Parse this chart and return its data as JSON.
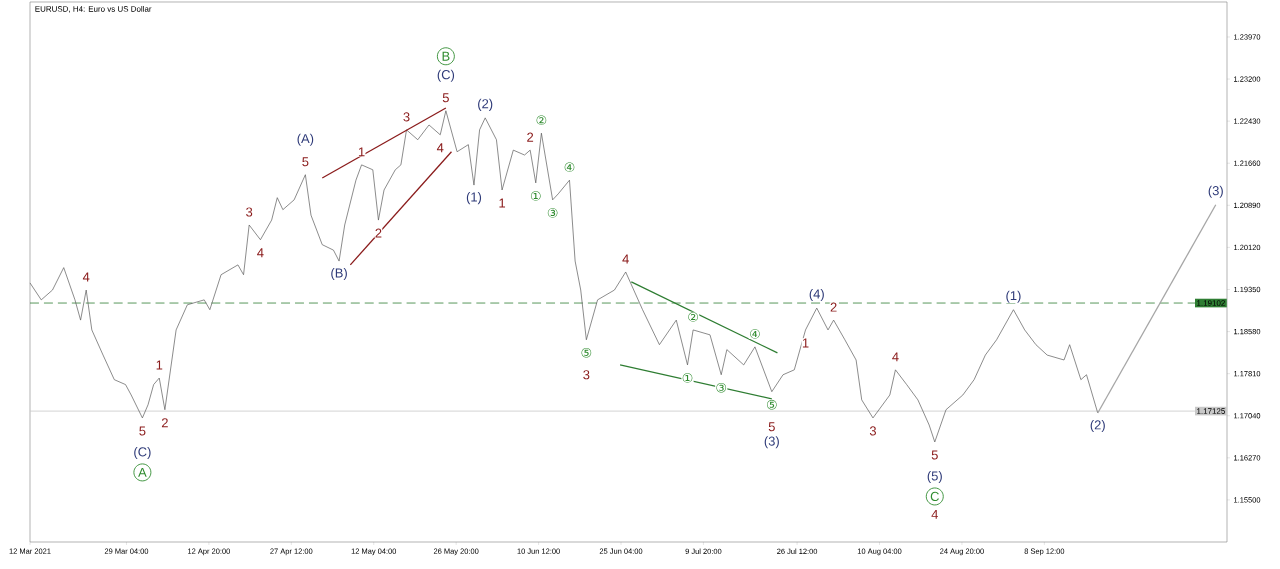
{
  "chart_data": {
    "type": "line",
    "title": "EURUSD, H4:  Euro vs US Dollar",
    "xlim": [
      "2021-03-12",
      "2021-10-11"
    ],
    "ylim": [
      1.1473,
      1.2461
    ],
    "xticks": [
      {
        "value": "2021-03-12T00:00",
        "label": "12 Mar 2021"
      },
      {
        "value": "2021-03-29T04:00",
        "label": "29 Mar 04:00"
      },
      {
        "value": "2021-04-12T20:00",
        "label": "12 Apr 20:00"
      },
      {
        "value": "2021-04-27T12:00",
        "label": "27 Apr 12:00"
      },
      {
        "value": "2021-05-12T04:00",
        "label": "12 May 04:00"
      },
      {
        "value": "2021-05-26T20:00",
        "label": "26 May 20:00"
      },
      {
        "value": "2021-06-10T12:00",
        "label": "10 Jun 12:00"
      },
      {
        "value": "2021-06-25T04:00",
        "label": "25 Jun 04:00"
      },
      {
        "value": "2021-07-09T20:00",
        "label": "9 Jul 20:00"
      },
      {
        "value": "2021-07-26T12:00",
        "label": "26 Jul 12:00"
      },
      {
        "value": "2021-08-10T04:00",
        "label": "10 Aug 04:00"
      },
      {
        "value": "2021-08-24T20:00",
        "label": "24 Aug 20:00"
      },
      {
        "value": "2021-09-08T12:00",
        "label": "8 Sep 12:00"
      }
    ],
    "yticks": [
      {
        "value": 1.155,
        "label": "1.15500"
      },
      {
        "value": 1.1627,
        "label": "1.16270"
      },
      {
        "value": 1.1704,
        "label": "1.17040"
      },
      {
        "value": 1.1781,
        "label": "1.17810"
      },
      {
        "value": 1.1858,
        "label": "1.18580"
      },
      {
        "value": 1.1935,
        "label": "1.19350"
      },
      {
        "value": 1.2012,
        "label": "1.20120"
      },
      {
        "value": 1.2089,
        "label": "1.20890"
      },
      {
        "value": 1.2166,
        "label": "1.21660"
      },
      {
        "value": 1.2243,
        "label": "1.22430"
      },
      {
        "value": 1.232,
        "label": "1.23200"
      },
      {
        "value": 1.2397,
        "label": "1.23970"
      }
    ],
    "series": [
      {
        "color": "#5a5a5a",
        "x": [
          "2021-03-12",
          "2021-03-14",
          "2021-03-16",
          "2021-03-18",
          "2021-03-20",
          "2021-03-21",
          "2021-03-22",
          "2021-03-23",
          "2021-03-25",
          "2021-03-27",
          "2021-03-29",
          "2021-03-30",
          "2021-04-01",
          "2021-04-02",
          "2021-04-03",
          "2021-04-04",
          "2021-04-05",
          "2021-04-07",
          "2021-04-09",
          "2021-04-12",
          "2021-04-13",
          "2021-04-15",
          "2021-04-18",
          "2021-04-19",
          "2021-04-20",
          "2021-04-22",
          "2021-04-24",
          "2021-04-25",
          "2021-04-26",
          "2021-04-28",
          "2021-04-30",
          "2021-05-01",
          "2021-05-03",
          "2021-05-05",
          "2021-05-06",
          "2021-05-07",
          "2021-05-09",
          "2021-05-10",
          "2021-05-12",
          "2021-05-13",
          "2021-05-14",
          "2021-05-16",
          "2021-05-17",
          "2021-05-18",
          "2021-05-20",
          "2021-05-22",
          "2021-05-24",
          "2021-05-25",
          "2021-05-27",
          "2021-05-29",
          "2021-05-30",
          "2021-05-31",
          "2021-06-01",
          "2021-06-03",
          "2021-06-04",
          "2021-06-06",
          "2021-06-08",
          "2021-06-09",
          "2021-06-10",
          "2021-06-11",
          "2021-06-13",
          "2021-06-14",
          "2021-06-16",
          "2021-06-17",
          "2021-06-18",
          "2021-06-19",
          "2021-06-21",
          "2021-06-24",
          "2021-06-26",
          "2021-06-29",
          "2021-07-02",
          "2021-07-05",
          "2021-07-07",
          "2021-07-08",
          "2021-07-11",
          "2021-07-13",
          "2021-07-14",
          "2021-07-17",
          "2021-07-19",
          "2021-07-22",
          "2021-07-24",
          "2021-07-26",
          "2021-07-28",
          "2021-07-30",
          "2021-08-01",
          "2021-08-02",
          "2021-08-04",
          "2021-08-06",
          "2021-08-07",
          "2021-08-09",
          "2021-08-12",
          "2021-08-13",
          "2021-08-15",
          "2021-08-17",
          "2021-08-19",
          "2021-08-20",
          "2021-08-22",
          "2021-08-25",
          "2021-08-27",
          "2021-08-29",
          "2021-08-31",
          "2021-09-03",
          "2021-09-05",
          "2021-09-07",
          "2021-09-09",
          "2021-09-12",
          "2021-09-13",
          "2021-09-15",
          "2021-09-16",
          "2021-09-18"
        ],
        "values": [
          1.1947,
          1.1916,
          1.1934,
          1.1975,
          1.1916,
          1.1879,
          1.1934,
          1.1861,
          1.1815,
          1.177,
          1.1761,
          1.1742,
          1.17,
          1.1724,
          1.1761,
          1.1773,
          1.1715,
          1.1861,
          1.1907,
          1.1916,
          1.1898,
          1.1962,
          1.198,
          1.1962,
          1.2053,
          1.2026,
          1.2062,
          1.2103,
          1.2081,
          1.2099,
          1.2145,
          1.2071,
          1.2017,
          1.2007,
          1.1987,
          1.2053,
          1.2135,
          1.2163,
          1.2154,
          1.2062,
          1.2117,
          1.2154,
          1.2163,
          1.2227,
          1.2209,
          1.2236,
          1.2218,
          1.2262,
          1.2187,
          1.22,
          1.2126,
          1.2227,
          1.2249,
          1.2209,
          1.2117,
          1.219,
          1.2181,
          1.219,
          1.213,
          1.2221,
          1.2099,
          1.211,
          1.2135,
          1.1987,
          1.1934,
          1.1843,
          1.1916,
          1.1934,
          1.1967,
          1.1898,
          1.1834,
          1.1879,
          1.1797,
          1.1861,
          1.1852,
          1.1779,
          1.1825,
          1.1797,
          1.183,
          1.1748,
          1.1779,
          1.1788,
          1.1861,
          1.1901,
          1.1861,
          1.1879,
          1.1843,
          1.1806,
          1.1733,
          1.17,
          1.1742,
          1.1788,
          1.1761,
          1.1733,
          1.1687,
          1.1656,
          1.1715,
          1.1742,
          1.177,
          1.1815,
          1.1843,
          1.1898,
          1.1861,
          1.1834,
          1.1815,
          1.1806,
          1.1834,
          1.177,
          1.1779,
          1.1709
        ]
      },
      {
        "color": "#a6a6a6",
        "x": [
          "2021-09-18",
          "2021-10-09"
        ],
        "values": [
          1.1709,
          1.209
        ]
      },
      {
        "color": "#8b1c1c",
        "x": [
          "2021-05-03",
          "2021-05-25"
        ],
        "values": [
          1.2139,
          1.2267
        ]
      },
      {
        "color": "#8b1c1c",
        "x": [
          "2021-05-08",
          "2021-05-26"
        ],
        "values": [
          1.198,
          1.2187
        ]
      },
      {
        "color": "#2e7d32",
        "x": [
          "2021-06-27",
          "2021-07-23"
        ],
        "values": [
          1.1949,
          1.1819
        ]
      },
      {
        "color": "#2e7d32",
        "x": [
          "2021-06-25",
          "2021-07-22"
        ],
        "values": [
          1.1797,
          1.1735
        ]
      }
    ],
    "ref_lines": [
      {
        "axis": "y",
        "value": 1.19102,
        "label": "1.19102",
        "color": "#2e7d32",
        "line_style": "dashed"
      },
      {
        "axis": "y",
        "value": 1.17125,
        "label": "1.17125",
        "color": "#c8c8c8",
        "line_style": "solid"
      }
    ],
    "annotations": [
      {
        "text": "4",
        "x": "2021-03-22",
        "y": 1.1934
      },
      {
        "text": "1",
        "x": "2021-04-04",
        "y": 1.1773
      },
      {
        "text": "5",
        "x": "2021-04-01",
        "y": 1.17
      },
      {
        "text": "(C)",
        "x": "2021-04-01",
        "y": 1.17
      },
      "A",
      {
        "text": "2",
        "x": "2021-04-05",
        "y": 1.1715
      },
      {
        "text": "3",
        "x": "2021-04-20",
        "y": 1.2053
      },
      {
        "text": "4",
        "x": "2021-04-22",
        "y": 1.2026
      },
      {
        "text": "5",
        "x": "2021-04-30",
        "y": 1.2145
      },
      {
        "text": "(A)",
        "x": "2021-04-30",
        "y": 1.2145
      },
      {
        "text": "(B)",
        "x": "2021-05-06",
        "y": 1.1987
      },
      {
        "text": "1",
        "x": "2021-05-10",
        "y": 1.2163
      },
      {
        "text": "2",
        "x": "2021-05-13",
        "y": 1.2062
      },
      {
        "text": "3",
        "x": "2021-05-18",
        "y": 1.2227
      },
      {
        "text": "4",
        "x": "2021-05-24",
        "y": 1.2218
      },
      {
        "text": "5",
        "x": "2021-05-25",
        "y": 1.2262
      },
      {
        "text": "(C)",
        "x": "2021-05-25",
        "y": 1.2262
      },
      "B",
      {
        "text": "(1)",
        "x": "2021-05-30",
        "y": 1.2126
      },
      {
        "text": "(2)",
        "x": "2021-06-01",
        "y": 1.2249
      },
      {
        "text": "1",
        "x": "2021-06-04",
        "y": 1.2117
      },
      {
        "text": "2",
        "x": "2021-06-09",
        "y": 1.219
      },
      {
        "text": "①",
        "x": "2021-06-10",
        "y": 1.213
      },
      {
        "text": "②",
        "x": "2021-06-11",
        "y": 1.2221
      },
      {
        "text": "③",
        "x": "2021-06-13",
        "y": 1.2099
      },
      {
        "text": "④",
        "x": "2021-06-16",
        "y": 1.2135
      },
      {
        "text": "⑤",
        "x": "2021-06-19",
        "y": 1.1843
      },
      {
        "text": "3",
        "x": "2021-06-19",
        "y": 1.1843
      },
      {
        "text": "4",
        "x": "2021-06-26",
        "y": 1.1967
      },
      {
        "text": "①",
        "x": "2021-07-07",
        "y": 1.1797
      },
      {
        "text": "②",
        "x": "2021-07-08",
        "y": 1.1861
      },
      {
        "text": "③",
        "x": "2021-07-13",
        "y": 1.1779
      },
      {
        "text": "④",
        "x": "2021-07-19",
        "y": 1.183
      },
      {
        "text": "⑤",
        "x": "2021-07-22",
        "y": 1.1748
      },
      {
        "text": "5",
        "x": "2021-07-22",
        "y": 1.1748
      },
      "(3)",
      {
        "text": "1",
        "x": "2021-07-28",
        "y": 1.1861
      },
      {
        "text": "(4)",
        "x": "2021-07-30",
        "y": 1.1901
      },
      {
        "text": "2",
        "x": "2021-08-02",
        "y": 1.1879
      },
      {
        "text": "3",
        "x": "2021-08-09",
        "y": 1.17
      },
      {
        "text": "4",
        "x": "2021-08-13",
        "y": 1.1788
      },
      {
        "text": "5",
        "x": "2021-08-20",
        "y": 1.1656
      },
      {
        "text": "(5)",
        "x": "2021-08-20",
        "y": 1.1656
      },
      "C",
      "4",
      {
        "text": "(1)",
        "x": "2021-09-03",
        "y": 1.1898
      },
      {
        "text": "(2)",
        "x": "2021-09-18",
        "y": 1.1709
      },
      {
        "text": "(3)",
        "x": "2021-10-09",
        "y": 1.209
      }
    ]
  }
}
